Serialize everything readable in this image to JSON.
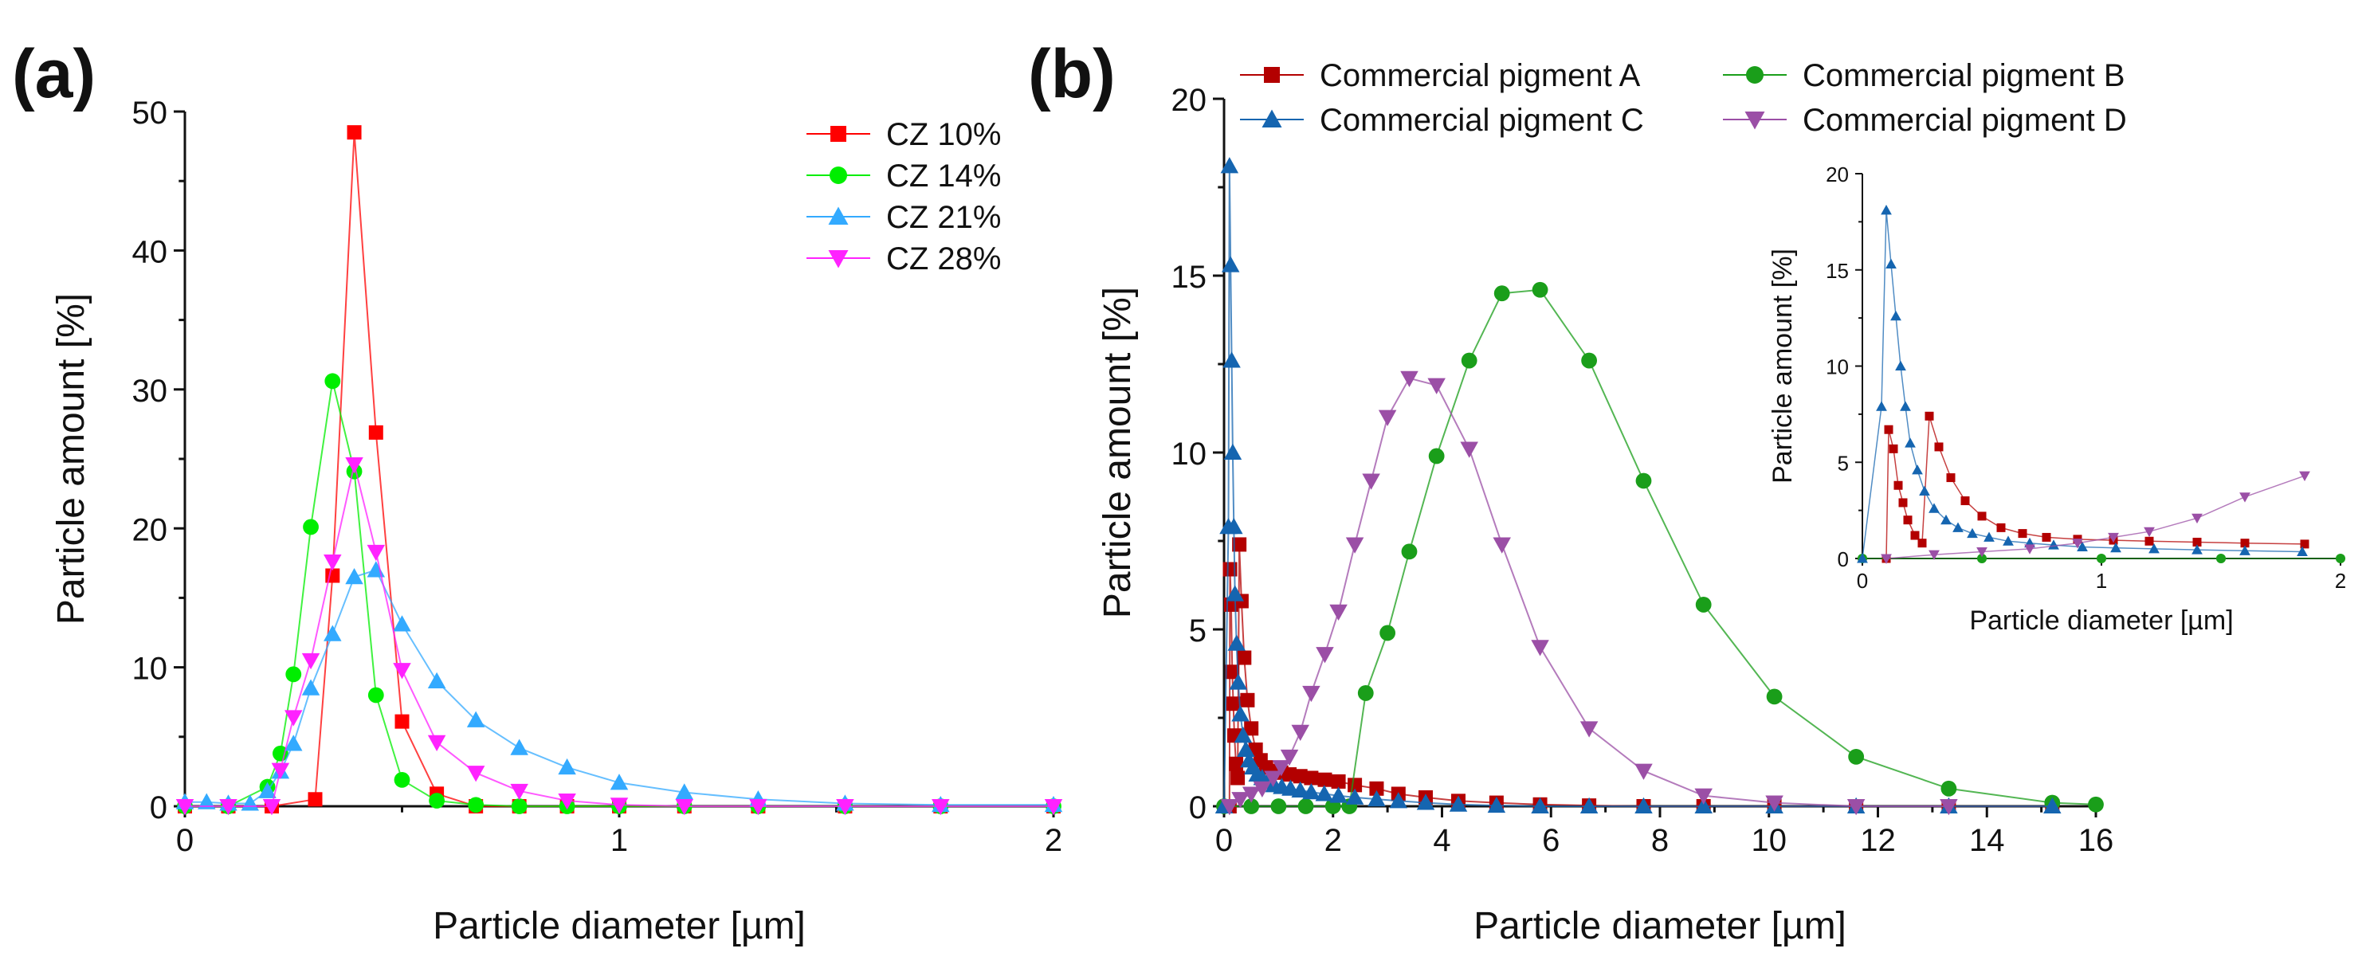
{
  "chart_data": [
    {
      "panel": "(a)",
      "type": "line",
      "xlabel": "Particle diameter [µm]",
      "ylabel": "Particle amount [%]",
      "xlim": [
        0,
        2
      ],
      "ylim": [
        0,
        50
      ],
      "xticks": [
        0,
        1,
        2
      ],
      "yticks": [
        0,
        10,
        20,
        30,
        40,
        50
      ],
      "legend_position": "top-right",
      "series": [
        {
          "name": "CZ 10%",
          "color": "#ff0000",
          "marker": "square",
          "points": [
            [
              0,
              0
            ],
            [
              0.1,
              0
            ],
            [
              0.2,
              0
            ],
            [
              0.3,
              0.5
            ],
            [
              0.34,
              16.6
            ],
            [
              0.39,
              48.5
            ],
            [
              0.44,
              26.9
            ],
            [
              0.5,
              6.1
            ],
            [
              0.58,
              0.9
            ],
            [
              0.67,
              0
            ],
            [
              0.77,
              0
            ],
            [
              0.88,
              0
            ],
            [
              1.0,
              0
            ],
            [
              1.15,
              0
            ],
            [
              1.32,
              0
            ],
            [
              1.52,
              0
            ],
            [
              1.74,
              0
            ],
            [
              2.0,
              0
            ]
          ]
        },
        {
          "name": "CZ 14%",
          "color": "#00ee00",
          "marker": "circle",
          "points": [
            [
              0,
              0
            ],
            [
              0.1,
              0
            ],
            [
              0.19,
              1.4
            ],
            [
              0.22,
              3.8
            ],
            [
              0.25,
              9.5
            ],
            [
              0.29,
              20.1
            ],
            [
              0.34,
              30.6
            ],
            [
              0.39,
              24.1
            ],
            [
              0.44,
              8.0
            ],
            [
              0.5,
              1.9
            ],
            [
              0.58,
              0.4
            ],
            [
              0.67,
              0.1
            ],
            [
              0.77,
              0
            ],
            [
              0.88,
              0
            ],
            [
              1.0,
              0
            ],
            [
              1.15,
              0
            ],
            [
              1.32,
              0
            ],
            [
              1.52,
              0
            ],
            [
              1.74,
              0
            ],
            [
              2.0,
              0
            ]
          ]
        },
        {
          "name": "CZ 21%",
          "color": "#33aaff",
          "marker": "triangle-up",
          "points": [
            [
              0,
              0.3
            ],
            [
              0.05,
              0.3
            ],
            [
              0.1,
              0.2
            ],
            [
              0.15,
              0.2
            ],
            [
              0.19,
              1.1
            ],
            [
              0.22,
              2.5
            ],
            [
              0.25,
              4.5
            ],
            [
              0.29,
              8.5
            ],
            [
              0.34,
              12.4
            ],
            [
              0.39,
              16.5
            ],
            [
              0.44,
              17.0
            ],
            [
              0.5,
              13.1
            ],
            [
              0.58,
              9.0
            ],
            [
              0.67,
              6.2
            ],
            [
              0.77,
              4.2
            ],
            [
              0.88,
              2.8
            ],
            [
              1.0,
              1.7
            ],
            [
              1.15,
              1.0
            ],
            [
              1.32,
              0.5
            ],
            [
              1.52,
              0.2
            ],
            [
              1.74,
              0.1
            ],
            [
              2.0,
              0.1
            ]
          ]
        },
        {
          "name": "CZ 28%",
          "color": "#ff22ff",
          "marker": "triangle-down",
          "points": [
            [
              0,
              0
            ],
            [
              0.1,
              0
            ],
            [
              0.2,
              0
            ],
            [
              0.22,
              2.6
            ],
            [
              0.25,
              6.4
            ],
            [
              0.29,
              10.5
            ],
            [
              0.34,
              17.6
            ],
            [
              0.39,
              24.6
            ],
            [
              0.44,
              18.3
            ],
            [
              0.5,
              9.8
            ],
            [
              0.58,
              4.6
            ],
            [
              0.67,
              2.4
            ],
            [
              0.77,
              1.1
            ],
            [
              0.88,
              0.4
            ],
            [
              1.0,
              0.1
            ],
            [
              1.15,
              0
            ],
            [
              1.32,
              0
            ],
            [
              1.52,
              0
            ],
            [
              1.74,
              0
            ],
            [
              2.0,
              0
            ]
          ]
        }
      ]
    },
    {
      "panel": "(b)",
      "type": "line",
      "xlabel": "Particle diameter [µm]",
      "ylabel": "Particle amount [%]",
      "xlim": [
        0,
        16
      ],
      "ylim": [
        0,
        20
      ],
      "xticks": [
        0,
        2,
        4,
        6,
        8,
        10,
        12,
        14,
        16
      ],
      "yticks": [
        0,
        5,
        10,
        15,
        20
      ],
      "legend_position": "top",
      "series": [
        {
          "name": "Commercial pigment A",
          "color": "#b30000",
          "marker": "square",
          "points": [
            [
              0.1,
              0
            ],
            [
              0.11,
              6.7
            ],
            [
              0.13,
              5.7
            ],
            [
              0.15,
              3.8
            ],
            [
              0.17,
              2.9
            ],
            [
              0.19,
              2.0
            ],
            [
              0.22,
              1.2
            ],
            [
              0.25,
              0.8
            ],
            [
              0.28,
              7.4
            ],
            [
              0.32,
              5.8
            ],
            [
              0.37,
              4.2
            ],
            [
              0.43,
              3.0
            ],
            [
              0.5,
              2.2
            ],
            [
              0.58,
              1.6
            ],
            [
              0.67,
              1.3
            ],
            [
              0.77,
              1.1
            ],
            [
              0.9,
              1.0
            ],
            [
              1.05,
              0.95
            ],
            [
              1.2,
              0.9
            ],
            [
              1.4,
              0.85
            ],
            [
              1.6,
              0.8
            ],
            [
              1.85,
              0.75
            ],
            [
              2.1,
              0.7
            ],
            [
              2.4,
              0.6
            ],
            [
              2.8,
              0.5
            ],
            [
              3.2,
              0.35
            ],
            [
              3.7,
              0.25
            ],
            [
              4.3,
              0.15
            ],
            [
              5.0,
              0.1
            ],
            [
              5.8,
              0.05
            ],
            [
              6.7,
              0.02
            ],
            [
              7.7,
              0
            ],
            [
              8.8,
              0
            ],
            [
              10.1,
              0
            ],
            [
              11.6,
              0
            ],
            [
              13.3,
              0
            ],
            [
              15.2,
              0
            ]
          ]
        },
        {
          "name": "Commercial pigment B",
          "color": "#1a9e1a",
          "marker": "circle",
          "points": [
            [
              0,
              0
            ],
            [
              0.5,
              0
            ],
            [
              1.0,
              0
            ],
            [
              1.5,
              0
            ],
            [
              2.0,
              0
            ],
            [
              2.3,
              0
            ],
            [
              2.6,
              3.2
            ],
            [
              3.0,
              4.9
            ],
            [
              3.4,
              7.2
            ],
            [
              3.9,
              9.9
            ],
            [
              4.5,
              12.6
            ],
            [
              5.1,
              14.5
            ],
            [
              5.8,
              14.6
            ],
            [
              6.7,
              12.6
            ],
            [
              7.7,
              9.2
            ],
            [
              8.8,
              5.7
            ],
            [
              10.1,
              3.1
            ],
            [
              11.6,
              1.4
            ],
            [
              13.3,
              0.5
            ],
            [
              15.2,
              0.1
            ],
            [
              16,
              0.05
            ]
          ]
        },
        {
          "name": "Commercial pigment C",
          "color": "#1565b0",
          "marker": "triangle-up",
          "points": [
            [
              0,
              0
            ],
            [
              0.08,
              7.9
            ],
            [
              0.1,
              18.1
            ],
            [
              0.12,
              15.3
            ],
            [
              0.14,
              12.6
            ],
            [
              0.16,
              10.0
            ],
            [
              0.18,
              7.9
            ],
            [
              0.2,
              6.0
            ],
            [
              0.23,
              4.6
            ],
            [
              0.26,
              3.5
            ],
            [
              0.3,
              2.6
            ],
            [
              0.35,
              2.0
            ],
            [
              0.4,
              1.6
            ],
            [
              0.46,
              1.3
            ],
            [
              0.53,
              1.1
            ],
            [
              0.61,
              0.9
            ],
            [
              0.7,
              0.8
            ],
            [
              0.8,
              0.7
            ],
            [
              0.92,
              0.6
            ],
            [
              1.06,
              0.55
            ],
            [
              1.22,
              0.5
            ],
            [
              1.4,
              0.45
            ],
            [
              1.6,
              0.4
            ],
            [
              1.84,
              0.35
            ],
            [
              2.1,
              0.3
            ],
            [
              2.4,
              0.25
            ],
            [
              2.8,
              0.2
            ],
            [
              3.2,
              0.15
            ],
            [
              3.7,
              0.1
            ],
            [
              4.3,
              0.05
            ],
            [
              5.0,
              0.02
            ],
            [
              5.8,
              0
            ],
            [
              6.7,
              0
            ],
            [
              7.7,
              0
            ],
            [
              8.8,
              0
            ],
            [
              10.1,
              0
            ],
            [
              11.6,
              0
            ],
            [
              13.3,
              0
            ],
            [
              15.2,
              0
            ]
          ]
        },
        {
          "name": "Commercial pigment D",
          "color": "#9b4fa6",
          "marker": "triangle-down",
          "points": [
            [
              0.1,
              0
            ],
            [
              0.3,
              0.2
            ],
            [
              0.5,
              0.35
            ],
            [
              0.7,
              0.5
            ],
            [
              0.9,
              0.8
            ],
            [
              1.05,
              1.1
            ],
            [
              1.2,
              1.4
            ],
            [
              1.4,
              2.1
            ],
            [
              1.6,
              3.2
            ],
            [
              1.85,
              4.3
            ],
            [
              2.1,
              5.5
            ],
            [
              2.4,
              7.4
            ],
            [
              2.7,
              9.2
            ],
            [
              3.0,
              11.0
            ],
            [
              3.4,
              12.1
            ],
            [
              3.9,
              11.9
            ],
            [
              4.5,
              10.1
            ],
            [
              5.1,
              7.4
            ],
            [
              5.8,
              4.5
            ],
            [
              6.7,
              2.2
            ],
            [
              7.7,
              1.0
            ],
            [
              8.8,
              0.3
            ],
            [
              10.1,
              0.1
            ],
            [
              11.6,
              0
            ],
            [
              13.3,
              0
            ]
          ]
        }
      ],
      "inset": {
        "xlabel": "Particle diameter [µm]",
        "ylabel": "Particle amount [%]",
        "xlim": [
          0,
          2
        ],
        "ylim": [
          0,
          20
        ],
        "xticks": [
          0,
          1,
          2
        ],
        "yticks": [
          0,
          5,
          10,
          15,
          20
        ]
      }
    }
  ]
}
